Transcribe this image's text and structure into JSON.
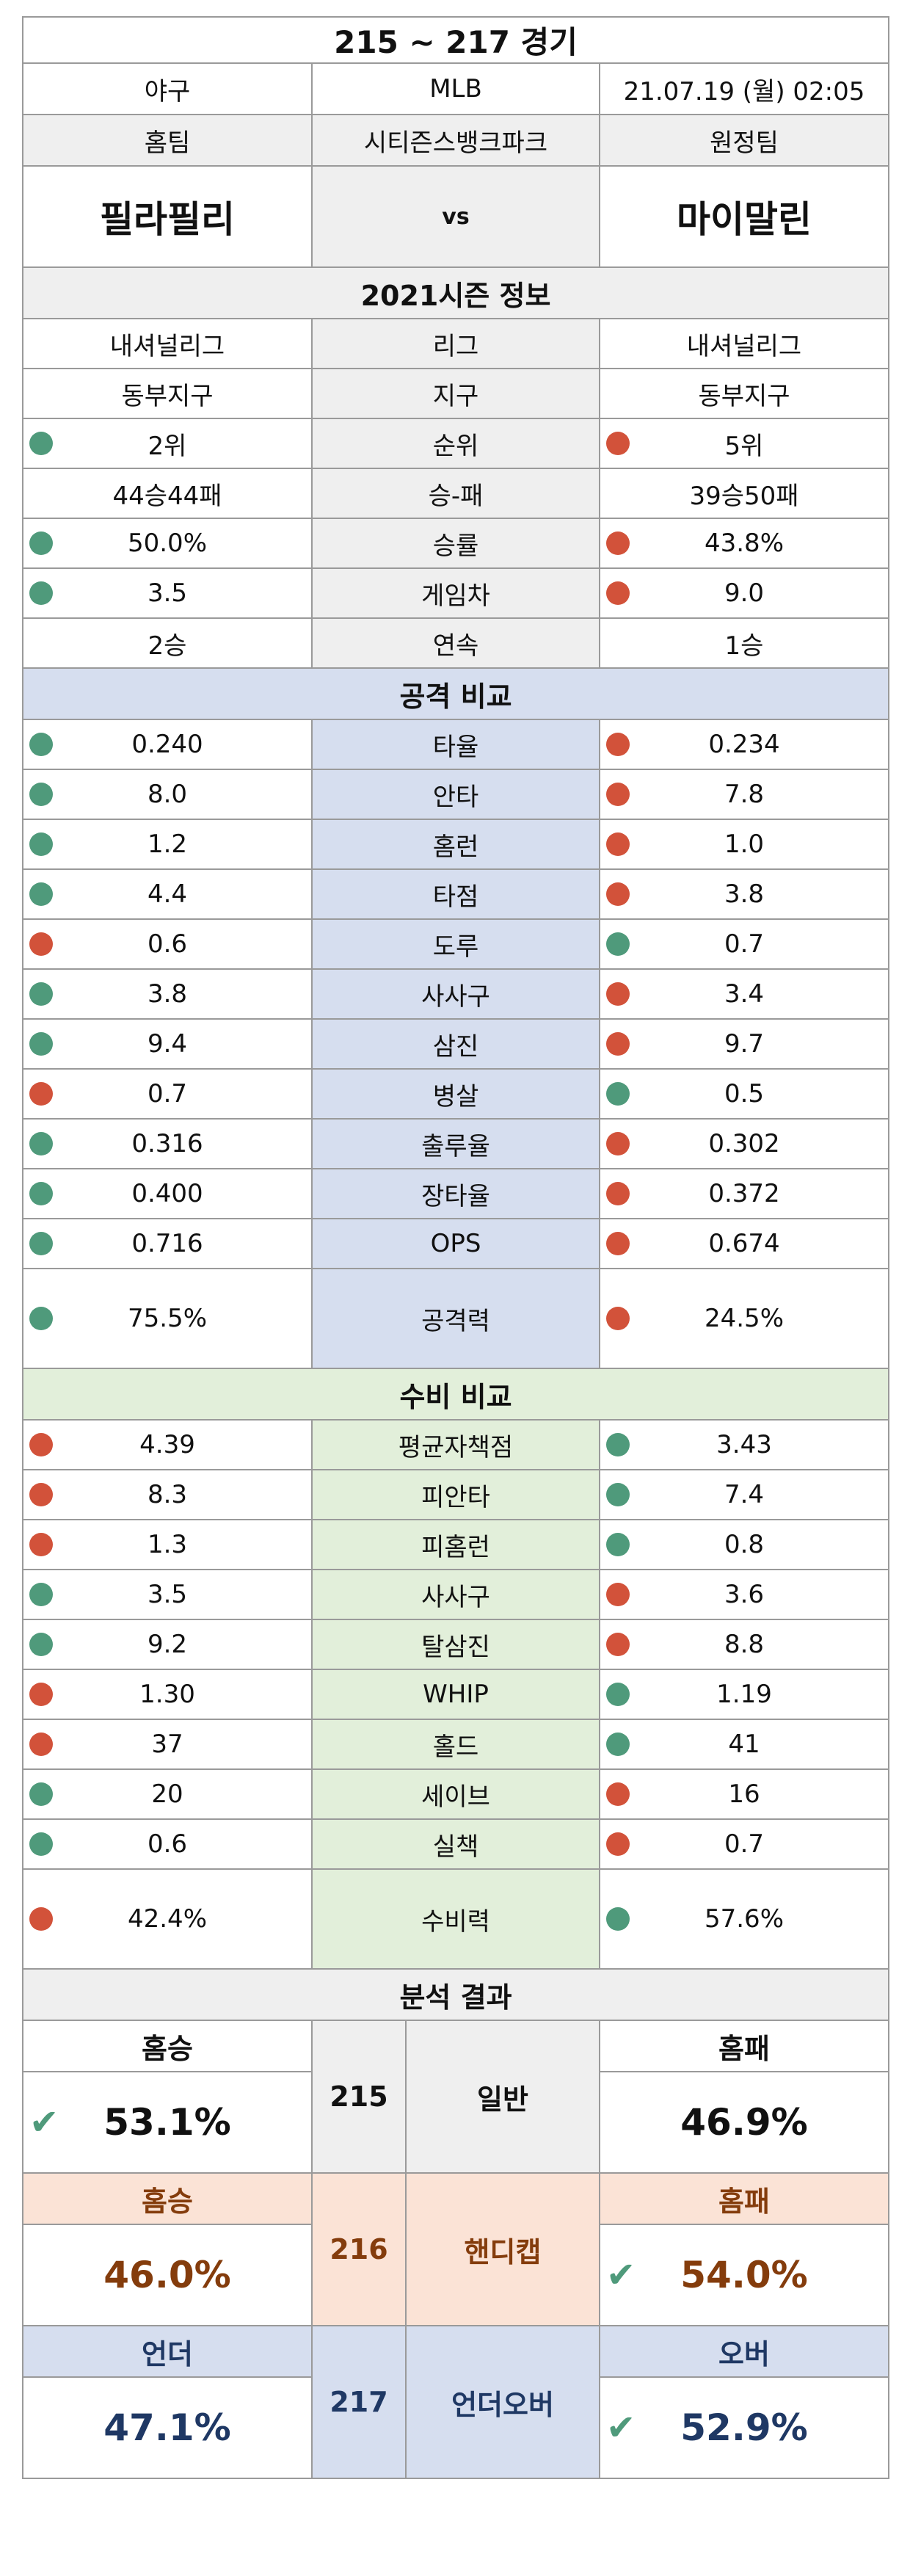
{
  "header": {
    "title": "215 ~ 217 경기",
    "sport": "야구",
    "league": "MLB",
    "datetime": "21.07.19 (월) 02:05"
  },
  "teams": {
    "home_label": "홈팀",
    "venue": "시티즌스뱅크파크",
    "away_label": "원정팀",
    "home": "필라필리",
    "vs": "vs",
    "away": "마이말린"
  },
  "season": {
    "title": "2021시즌 정보",
    "rows": [
      {
        "home": "내셔널리그",
        "label": "리그",
        "away": "내셔널리그",
        "hd": "",
        "ad": ""
      },
      {
        "home": "동부지구",
        "label": "지구",
        "away": "동부지구",
        "hd": "",
        "ad": ""
      },
      {
        "home": "2위",
        "label": "순위",
        "away": "5위",
        "hd": "g",
        "ad": "r"
      },
      {
        "home": "44승44패",
        "label": "승-패",
        "away": "39승50패",
        "hd": "",
        "ad": ""
      },
      {
        "home": "50.0%",
        "label": "승률",
        "away": "43.8%",
        "hd": "g",
        "ad": "r"
      },
      {
        "home": "3.5",
        "label": "게임차",
        "away": "9.0",
        "hd": "g",
        "ad": "r"
      },
      {
        "home": "2승",
        "label": "연속",
        "away": "1승",
        "hd": "",
        "ad": ""
      }
    ]
  },
  "offense": {
    "title": "공격 비교",
    "rows": [
      {
        "home": "0.240",
        "label": "타율",
        "away": "0.234",
        "hd": "g",
        "ad": "r"
      },
      {
        "home": "8.0",
        "label": "안타",
        "away": "7.8",
        "hd": "g",
        "ad": "r"
      },
      {
        "home": "1.2",
        "label": "홈런",
        "away": "1.0",
        "hd": "g",
        "ad": "r"
      },
      {
        "home": "4.4",
        "label": "타점",
        "away": "3.8",
        "hd": "g",
        "ad": "r"
      },
      {
        "home": "0.6",
        "label": "도루",
        "away": "0.7",
        "hd": "r",
        "ad": "g"
      },
      {
        "home": "3.8",
        "label": "사사구",
        "away": "3.4",
        "hd": "g",
        "ad": "r"
      },
      {
        "home": "9.4",
        "label": "삼진",
        "away": "9.7",
        "hd": "g",
        "ad": "r"
      },
      {
        "home": "0.7",
        "label": "병살",
        "away": "0.5",
        "hd": "r",
        "ad": "g"
      },
      {
        "home": "0.316",
        "label": "출루율",
        "away": "0.302",
        "hd": "g",
        "ad": "r"
      },
      {
        "home": "0.400",
        "label": "장타율",
        "away": "0.372",
        "hd": "g",
        "ad": "r"
      },
      {
        "home": "0.716",
        "label": "OPS",
        "away": "0.674",
        "hd": "g",
        "ad": "r"
      }
    ],
    "power": {
      "home": "75.5%",
      "label": "공격력",
      "away": "24.5%",
      "hd": "g",
      "ad": "r"
    }
  },
  "defense": {
    "title": "수비 비교",
    "rows": [
      {
        "home": "4.39",
        "label": "평균자책점",
        "away": "3.43",
        "hd": "r",
        "ad": "g"
      },
      {
        "home": "8.3",
        "label": "피안타",
        "away": "7.4",
        "hd": "r",
        "ad": "g"
      },
      {
        "home": "1.3",
        "label": "피홈런",
        "away": "0.8",
        "hd": "r",
        "ad": "g"
      },
      {
        "home": "3.5",
        "label": "사사구",
        "away": "3.6",
        "hd": "g",
        "ad": "r"
      },
      {
        "home": "9.2",
        "label": "탈삼진",
        "away": "8.8",
        "hd": "g",
        "ad": "r"
      },
      {
        "home": "1.30",
        "label": "WHIP",
        "away": "1.19",
        "hd": "r",
        "ad": "g"
      },
      {
        "home": "37",
        "label": "홀드",
        "away": "41",
        "hd": "r",
        "ad": "g"
      },
      {
        "home": "20",
        "label": "세이브",
        "away": "16",
        "hd": "g",
        "ad": "r"
      },
      {
        "home": "0.6",
        "label": "실책",
        "away": "0.7",
        "hd": "g",
        "ad": "r"
      }
    ],
    "power": {
      "home": "42.4%",
      "label": "수비력",
      "away": "57.6%",
      "hd": "r",
      "ad": "g"
    }
  },
  "analysis": {
    "title": "분석 결과",
    "general": {
      "home_head": "홈승",
      "num": "215",
      "label": "일반",
      "away_head": "홈패",
      "home_val": "53.1%",
      "away_val": "46.9%",
      "check": "home"
    },
    "handicap": {
      "home_head": "홈승",
      "num": "216",
      "label": "핸디캡",
      "away_head": "홈패",
      "home_val": "46.0%",
      "away_val": "54.0%",
      "check": "away"
    },
    "underover": {
      "home_head": "언더",
      "num": "217",
      "label": "언더오버",
      "away_head": "오버",
      "home_val": "47.1%",
      "away_val": "52.9%",
      "check": "away"
    },
    "check_icon": "✔"
  },
  "colors": {
    "good_dot": "#4f9a7b",
    "bad_dot": "#d2523a",
    "offense_bg": "#d6deef",
    "defense_bg": "#e2efda",
    "handicap_bg": "#fbe3d6",
    "underover_bg": "#d6deef"
  }
}
